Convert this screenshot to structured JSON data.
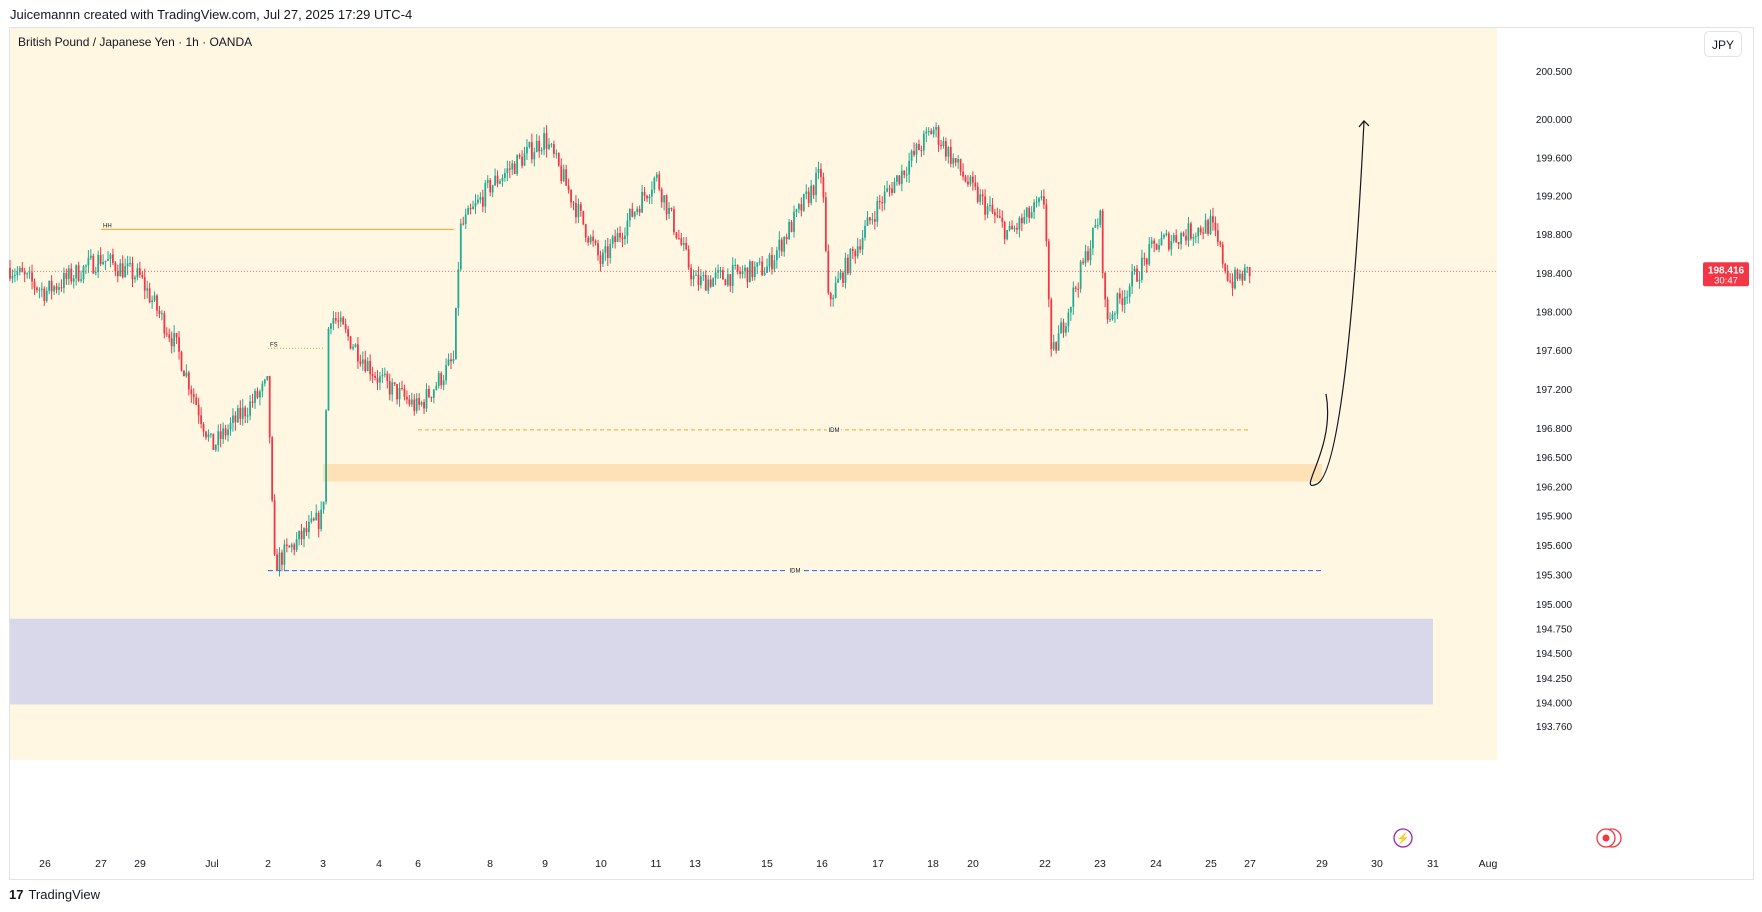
{
  "header": {
    "attribution": "Juicemannn created with TradingView.com, Jul 27, 2025 17:29 UTC-4"
  },
  "chart": {
    "symbol": "British Pound / Japanese Yen · 1h · OANDA",
    "currency": "JPY",
    "last_price": "198.416",
    "countdown": "30:47",
    "footer_brand": "TradingView",
    "annotations": {
      "hh": "HH",
      "fs": "FS",
      "idm1": "IDM",
      "idm2": "IDM"
    }
  },
  "chart_data": {
    "type": "candlestick",
    "title": "British Pound / Japanese Yen · 1h · OANDA",
    "ylim": [
      193.6,
      200.7
    ],
    "y_scale": "log",
    "y_ticks": [
      "200.500",
      "200.000",
      "199.600",
      "199.200",
      "198.800",
      "198.400",
      "198.000",
      "197.600",
      "197.200",
      "196.800",
      "196.500",
      "196.200",
      "195.900",
      "195.600",
      "195.300",
      "195.000",
      "194.750",
      "194.500",
      "194.250",
      "194.000",
      "193.760"
    ],
    "y_tick_values": [
      200.5,
      200.0,
      199.6,
      199.2,
      198.8,
      198.4,
      198.0,
      197.6,
      197.2,
      196.8,
      196.5,
      196.2,
      195.9,
      195.6,
      195.3,
      195.0,
      194.75,
      194.5,
      194.25,
      194.0,
      193.76
    ],
    "x_ticks": [
      "26",
      "27",
      "29",
      "Jul",
      "2",
      "3",
      "4",
      "6",
      "8",
      "9",
      "10",
      "11",
      "13",
      "15",
      "16",
      "17",
      "18",
      "20",
      "22",
      "23",
      "24",
      "25",
      "27",
      "29",
      "30",
      "31",
      "Aug"
    ],
    "x_tick_dates": [
      "2025-06-26",
      "2025-06-27",
      "2025-06-29",
      "2025-07-01",
      "2025-07-02",
      "2025-07-03",
      "2025-07-04",
      "2025-07-06",
      "2025-07-08",
      "2025-07-09",
      "2025-07-10",
      "2025-07-11",
      "2025-07-13",
      "2025-07-15",
      "2025-07-16",
      "2025-07-17",
      "2025-07-18",
      "2025-07-20",
      "2025-07-22",
      "2025-07-23",
      "2025-07-24",
      "2025-07-25",
      "2025-07-27",
      "2025-07-29",
      "2025-07-30",
      "2025-07-31",
      "2025-08-01"
    ],
    "approx_path": [
      {
        "x": "2025-06-25",
        "y": 198.45
      },
      {
        "x": "2025-06-26",
        "y": 198.2
      },
      {
        "x": "2025-06-27",
        "y": 198.55
      },
      {
        "x": "2025-06-29",
        "y": 198.35
      },
      {
        "x": "2025-06-30",
        "y": 197.65
      },
      {
        "x": "2025-07-01",
        "y": 196.6
      },
      {
        "x": "2025-07-02",
        "y": 197.25
      },
      {
        "x": "2025-07-02",
        "y": 195.4
      },
      {
        "x": "2025-07-03",
        "y": 195.9
      },
      {
        "x": "2025-07-03",
        "y": 198.0
      },
      {
        "x": "2025-07-04",
        "y": 197.3
      },
      {
        "x": "2025-07-06",
        "y": 197.0
      },
      {
        "x": "2025-07-07",
        "y": 197.5
      },
      {
        "x": "2025-07-07",
        "y": 198.85
      },
      {
        "x": "2025-07-08",
        "y": 199.3
      },
      {
        "x": "2025-07-09",
        "y": 199.8
      },
      {
        "x": "2025-07-10",
        "y": 198.5
      },
      {
        "x": "2025-07-11",
        "y": 199.4
      },
      {
        "x": "2025-07-13",
        "y": 198.3
      },
      {
        "x": "2025-07-15",
        "y": 198.45
      },
      {
        "x": "2025-07-16",
        "y": 199.45
      },
      {
        "x": "2025-07-16",
        "y": 198.1
      },
      {
        "x": "2025-07-17",
        "y": 199.1
      },
      {
        "x": "2025-07-18",
        "y": 199.9
      },
      {
        "x": "2025-07-20",
        "y": 199.25
      },
      {
        "x": "2025-07-21",
        "y": 198.8
      },
      {
        "x": "2025-07-22",
        "y": 199.15
      },
      {
        "x": "2025-07-22",
        "y": 197.5
      },
      {
        "x": "2025-07-23",
        "y": 199.0
      },
      {
        "x": "2025-07-23",
        "y": 197.9
      },
      {
        "x": "2025-07-24",
        "y": 198.7
      },
      {
        "x": "2025-07-25",
        "y": 198.9
      },
      {
        "x": "2025-07-26",
        "y": 198.3
      },
      {
        "x": "2025-07-27",
        "y": 198.416
      }
    ],
    "levels": [
      {
        "label": "HH",
        "price": 198.85,
        "from": "2025-06-27",
        "to": "2025-07-07"
      },
      {
        "label": "FS",
        "price": 197.62,
        "from": "2025-07-02",
        "to": "2025-07-03"
      },
      {
        "label": "IDM",
        "price": 196.78,
        "from": "2025-07-06",
        "to": "2025-07-27"
      },
      {
        "label": "IDM",
        "price": 195.34,
        "from": "2025-07-02",
        "to": "2025-07-29"
      }
    ],
    "zones": [
      {
        "name": "supply-demand-zone",
        "from_price": 196.25,
        "to_price": 196.43,
        "from": "2025-07-03",
        "to": "2025-07-29"
      },
      {
        "name": "lower-zone",
        "from_price": 193.98,
        "to_price": 194.85,
        "from": "2025-06-25",
        "to": "2025-07-31"
      }
    ],
    "projection": [
      {
        "x": "2025-07-28",
        "y": 197.15
      },
      {
        "x": "2025-07-29",
        "y": 196.22
      },
      {
        "x": "2025-07-29",
        "y": 196.3
      },
      {
        "x": "2025-07-30",
        "y": 200.0
      }
    ],
    "colors": {
      "up": "#22ab94",
      "down": "#f23645",
      "background": "#fff7e2",
      "hh_line": "#f5a623",
      "idm_line": "#f5a623",
      "idm_line2": "#2962ff",
      "zone": "#ffe1b7",
      "lower_zone": "#d8d8ea",
      "price_tag": "#f23645"
    }
  }
}
